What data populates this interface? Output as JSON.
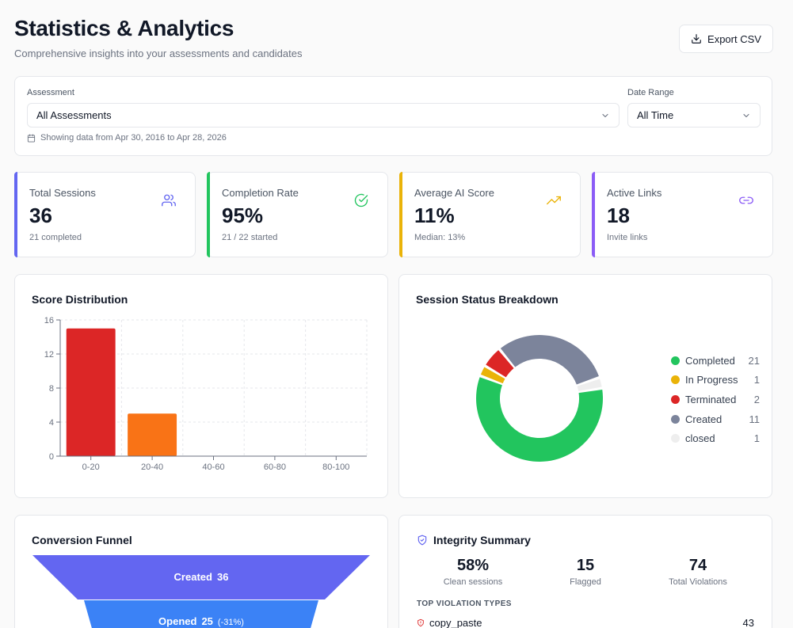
{
  "header": {
    "title": "Statistics & Analytics",
    "subtitle": "Comprehensive insights into your assessments and candidates",
    "export_label": "Export CSV"
  },
  "filters": {
    "assessment_label": "Assessment",
    "assessment_value": "All Assessments",
    "date_range_label": "Date Range",
    "date_range_value": "All Time",
    "range_note": "Showing data from Apr 30, 2016 to Apr 28, 2026"
  },
  "stats": [
    {
      "label": "Total Sessions",
      "value": "36",
      "sub": "21 completed",
      "icon": "users-icon",
      "color": "#6366f1"
    },
    {
      "label": "Completion Rate",
      "value": "95%",
      "sub": "21 / 22 started",
      "icon": "check-circle-icon",
      "color": "#22c55e"
    },
    {
      "label": "Average AI Score",
      "value": "11%",
      "sub": "Median: 13%",
      "icon": "trending-up-icon",
      "color": "#eab308"
    },
    {
      "label": "Active Links",
      "value": "18",
      "sub": "Invite links",
      "icon": "link-icon",
      "color": "#8b5cf6"
    }
  ],
  "score_distribution": {
    "title": "Score Distribution",
    "chart_data": {
      "type": "bar",
      "categories": [
        "0-20",
        "20-40",
        "40-60",
        "60-80",
        "80-100"
      ],
      "values": [
        15,
        5,
        0,
        0,
        0
      ],
      "ylim": [
        0,
        16
      ],
      "yticks": [
        0,
        4,
        8,
        12,
        16
      ],
      "colors": [
        "#dc2626",
        "#f97316",
        "#eab308",
        "#84cc16",
        "#22c55e"
      ],
      "grid": true
    }
  },
  "status_breakdown": {
    "title": "Session Status Breakdown",
    "items": [
      {
        "name": "Completed",
        "count": 21,
        "color": "#22c55e"
      },
      {
        "name": "In Progress",
        "count": 1,
        "color": "#eab308"
      },
      {
        "name": "Terminated",
        "count": 2,
        "color": "#dc2626"
      },
      {
        "name": "Created",
        "count": 11,
        "color": "#7c849b"
      },
      {
        "name": "closed",
        "count": 1,
        "color": "#eeeeee"
      }
    ]
  },
  "funnel": {
    "title": "Conversion Funnel",
    "stages": [
      {
        "name": "Created",
        "value": "36",
        "change": "",
        "color": "#6366f1"
      },
      {
        "name": "Opened",
        "value": "25",
        "change": "(-31%)",
        "color": "#3b82f6"
      }
    ]
  },
  "integrity": {
    "title": "Integrity Summary",
    "metrics": [
      {
        "value": "58%",
        "label": "Clean sessions"
      },
      {
        "value": "15",
        "label": "Flagged"
      },
      {
        "value": "74",
        "label": "Total Violations"
      }
    ],
    "violations_header": "TOP VIOLATION TYPES",
    "violations": [
      {
        "name": "copy_paste",
        "count": "43"
      }
    ]
  }
}
